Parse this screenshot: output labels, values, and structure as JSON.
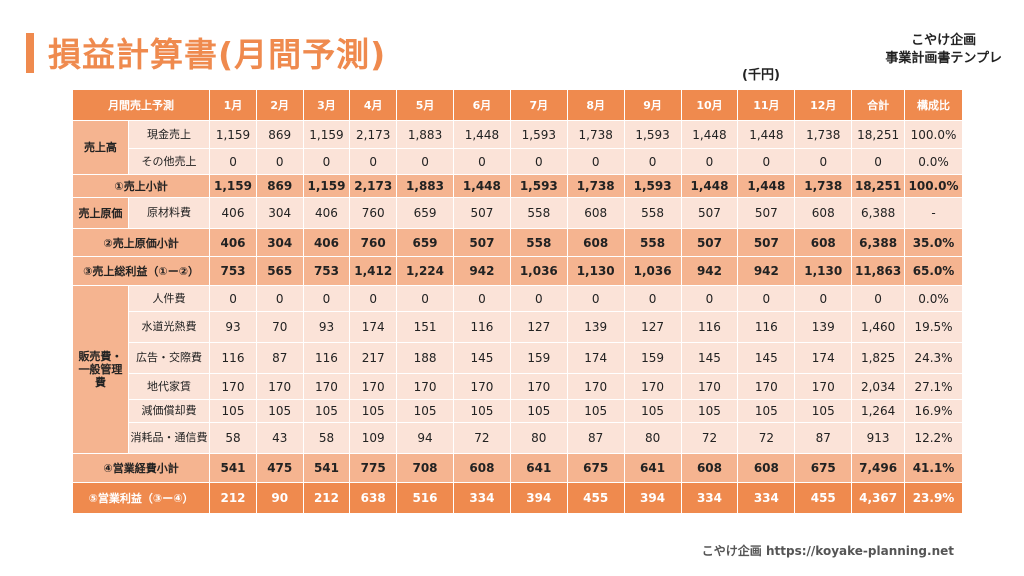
{
  "title": "損益計算書(月間予測)",
  "brand": {
    "line1": "こやけ企画",
    "line2": "事業計画書テンプレ"
  },
  "unit": "(千円)",
  "footer": "こやけ企画 https://koyake-planning.net",
  "table": {
    "corner": "月間売上予測",
    "months": [
      "1月",
      "2月",
      "3月",
      "4月",
      "5月",
      "6月",
      "7月",
      "8月",
      "9月",
      "10月",
      "11月",
      "12月"
    ],
    "total_header": "合計",
    "ratio_header": "構成比",
    "sections": {
      "sales": "売上高",
      "cogs": "売上原価",
      "sga": "販売費・一般管理費"
    },
    "rows": [
      {
        "name": "現金売上",
        "values": [
          "1,159",
          "869",
          "1,159",
          "2,173",
          "1,883",
          "1,448",
          "1,593",
          "1,738",
          "1,593",
          "1,448",
          "1,448",
          "1,738"
        ],
        "total": "18,251",
        "ratio": "100.0%"
      },
      {
        "name": "その他売上",
        "values": [
          "0",
          "0",
          "0",
          "0",
          "0",
          "0",
          "0",
          "0",
          "0",
          "0",
          "0",
          "0"
        ],
        "total": "0",
        "ratio": "0.0%"
      },
      {
        "name": "①売上小計",
        "values": [
          "1,159",
          "869",
          "1,159",
          "2,173",
          "1,883",
          "1,448",
          "1,593",
          "1,738",
          "1,593",
          "1,448",
          "1,448",
          "1,738"
        ],
        "total": "18,251",
        "ratio": "100.0%"
      },
      {
        "name": "原材料費",
        "values": [
          "406",
          "304",
          "406",
          "760",
          "659",
          "507",
          "558",
          "608",
          "558",
          "507",
          "507",
          "608"
        ],
        "total": "6,388",
        "ratio": "-"
      },
      {
        "name": "②売上原価小計",
        "values": [
          "406",
          "304",
          "406",
          "760",
          "659",
          "507",
          "558",
          "608",
          "558",
          "507",
          "507",
          "608"
        ],
        "total": "6,388",
        "ratio": "35.0%"
      },
      {
        "name": "③売上総利益（①ー②）",
        "values": [
          "753",
          "565",
          "753",
          "1,412",
          "1,224",
          "942",
          "1,036",
          "1,130",
          "1,036",
          "942",
          "942",
          "1,130"
        ],
        "total": "11,863",
        "ratio": "65.0%"
      },
      {
        "name": "人件費",
        "values": [
          "0",
          "0",
          "0",
          "0",
          "0",
          "0",
          "0",
          "0",
          "0",
          "0",
          "0",
          "0"
        ],
        "total": "0",
        "ratio": "0.0%"
      },
      {
        "name": "水道光熱費",
        "values": [
          "93",
          "70",
          "93",
          "174",
          "151",
          "116",
          "127",
          "139",
          "127",
          "116",
          "116",
          "139"
        ],
        "total": "1,460",
        "ratio": "19.5%"
      },
      {
        "name": "広告・交際費",
        "values": [
          "116",
          "87",
          "116",
          "217",
          "188",
          "145",
          "159",
          "174",
          "159",
          "145",
          "145",
          "174"
        ],
        "total": "1,825",
        "ratio": "24.3%"
      },
      {
        "name": "地代家賃",
        "values": [
          "170",
          "170",
          "170",
          "170",
          "170",
          "170",
          "170",
          "170",
          "170",
          "170",
          "170",
          "170"
        ],
        "total": "2,034",
        "ratio": "27.1%"
      },
      {
        "name": "減価償却費",
        "values": [
          "105",
          "105",
          "105",
          "105",
          "105",
          "105",
          "105",
          "105",
          "105",
          "105",
          "105",
          "105"
        ],
        "total": "1,264",
        "ratio": "16.9%"
      },
      {
        "name": "消耗品・通信費",
        "values": [
          "58",
          "43",
          "58",
          "109",
          "94",
          "72",
          "80",
          "87",
          "80",
          "72",
          "72",
          "87"
        ],
        "total": "913",
        "ratio": "12.2%"
      },
      {
        "name": "④営業経費小計",
        "values": [
          "541",
          "475",
          "541",
          "775",
          "708",
          "608",
          "641",
          "675",
          "641",
          "608",
          "608",
          "675"
        ],
        "total": "7,496",
        "ratio": "41.1%"
      },
      {
        "name": "⑤営業利益（③ー④）",
        "values": [
          "212",
          "90",
          "212",
          "638",
          "516",
          "334",
          "394",
          "455",
          "394",
          "334",
          "334",
          "455"
        ],
        "total": "4,367",
        "ratio": "23.9%"
      }
    ]
  }
}
